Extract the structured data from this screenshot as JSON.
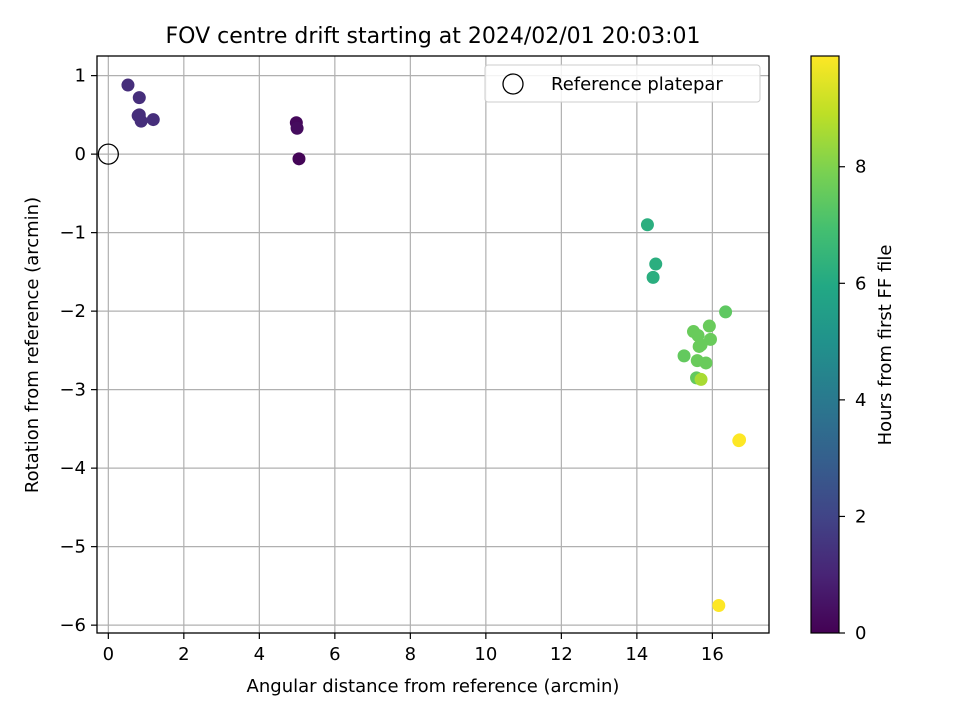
{
  "chart_data": {
    "type": "scatter",
    "title": "FOV centre drift starting at 2024/02/01 20:03:01",
    "xlabel": "Angular distance from reference (arcmin)",
    "ylabel": "Rotation from reference (arcmin)",
    "xlim": [
      -0.3,
      17.5
    ],
    "ylim": [
      -6.1,
      1.25
    ],
    "x_ticks": [
      0,
      2,
      4,
      6,
      8,
      10,
      12,
      14,
      16
    ],
    "y_ticks": [
      1,
      0,
      -1,
      -2,
      -3,
      -4,
      -5,
      -6
    ],
    "grid": true,
    "legend_position": "upper right",
    "legend": [
      {
        "label": "Reference platepar",
        "marker": "open-circle"
      }
    ],
    "reference_point": {
      "x": 0,
      "y": 0
    },
    "colorbar": {
      "label": "Hours from first FF file",
      "colormap": "viridis",
      "range": [
        0,
        9.9
      ],
      "ticks": [
        0,
        2,
        4,
        6,
        8
      ]
    },
    "points": [
      {
        "x": 0.52,
        "y": 0.88,
        "hours": 1.3
      },
      {
        "x": 0.82,
        "y": 0.72,
        "hours": 1.3
      },
      {
        "x": 0.82,
        "y": 0.5,
        "hours": 1.3
      },
      {
        "x": 0.87,
        "y": 0.42,
        "hours": 1.3
      },
      {
        "x": 0.79,
        "y": 0.49,
        "hours": 1.3
      },
      {
        "x": 1.19,
        "y": 0.44,
        "hours": 1.3
      },
      {
        "x": 4.98,
        "y": 0.4,
        "hours": 0.2
      },
      {
        "x": 5.0,
        "y": 0.33,
        "hours": 0.3
      },
      {
        "x": 5.05,
        "y": -0.06,
        "hours": 0.1
      },
      {
        "x": 14.28,
        "y": -0.9,
        "hours": 6.2
      },
      {
        "x": 14.5,
        "y": -1.4,
        "hours": 6.2
      },
      {
        "x": 14.43,
        "y": -1.57,
        "hours": 6.2
      },
      {
        "x": 16.35,
        "y": -2.01,
        "hours": 7.4
      },
      {
        "x": 15.92,
        "y": -2.19,
        "hours": 7.6
      },
      {
        "x": 15.5,
        "y": -2.26,
        "hours": 7.6
      },
      {
        "x": 15.62,
        "y": -2.31,
        "hours": 7.6
      },
      {
        "x": 15.95,
        "y": -2.36,
        "hours": 7.6
      },
      {
        "x": 15.65,
        "y": -2.45,
        "hours": 7.6
      },
      {
        "x": 15.7,
        "y": -2.43,
        "hours": 7.6
      },
      {
        "x": 15.25,
        "y": -2.57,
        "hours": 7.5
      },
      {
        "x": 15.6,
        "y": -2.63,
        "hours": 7.6
      },
      {
        "x": 15.83,
        "y": -2.66,
        "hours": 7.6
      },
      {
        "x": 15.58,
        "y": -2.85,
        "hours": 7.5
      },
      {
        "x": 15.7,
        "y": -2.87,
        "hours": 8.6
      },
      {
        "x": 16.72,
        "y": -3.64,
        "hours": 9.9
      },
      {
        "x": 16.7,
        "y": -3.65,
        "hours": 9.9
      },
      {
        "x": 16.17,
        "y": -5.75,
        "hours": 9.9
      }
    ]
  }
}
